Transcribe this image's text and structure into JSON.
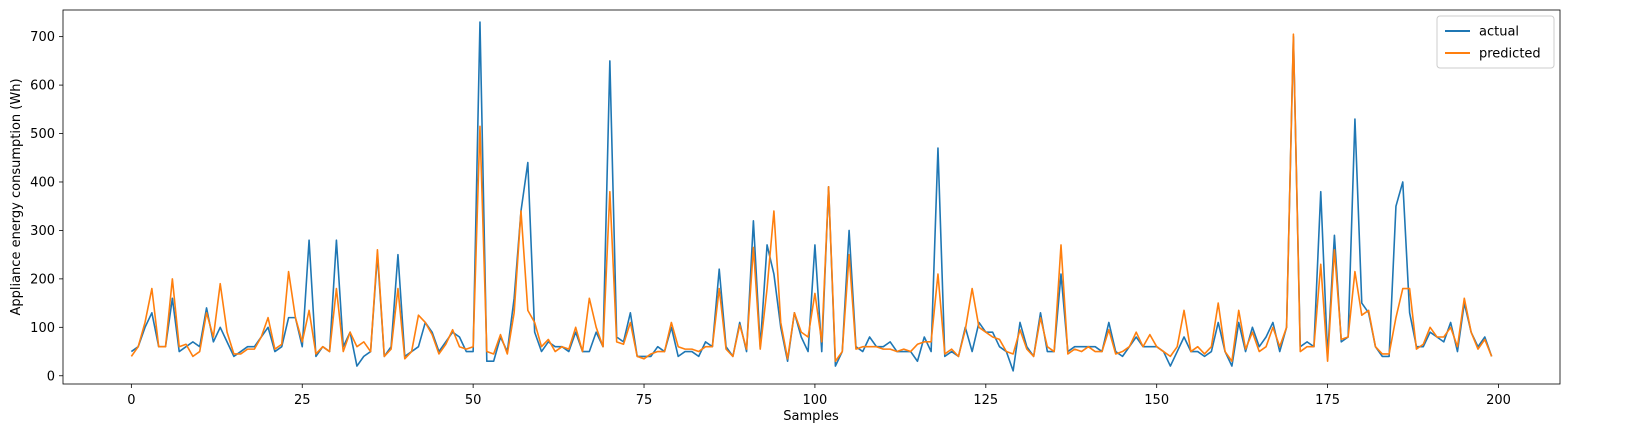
{
  "chart_data": {
    "type": "line",
    "xlabel": "Samples",
    "ylabel": "Appliance energy consumption (Wh)",
    "xlim": [
      -10,
      209
    ],
    "ylim": [
      -17,
      755
    ],
    "xticks": [
      0,
      25,
      50,
      75,
      100,
      125,
      150,
      175,
      200
    ],
    "yticks": [
      0,
      100,
      200,
      300,
      400,
      500,
      600,
      700
    ],
    "grid": false,
    "legend": "top-right",
    "series": [
      {
        "name": "actual",
        "color": "#1f77b4",
        "values": [
          50,
          60,
          100,
          130,
          60,
          60,
          160,
          50,
          60,
          70,
          60,
          140,
          70,
          100,
          70,
          40,
          50,
          60,
          60,
          80,
          100,
          50,
          60,
          120,
          120,
          60,
          280,
          40,
          60,
          50,
          280,
          60,
          90,
          20,
          40,
          50,
          250,
          40,
          60,
          250,
          40,
          50,
          60,
          110,
          90,
          50,
          70,
          90,
          80,
          50,
          50,
          730,
          30,
          30,
          80,
          50,
          160,
          340,
          440,
          90,
          50,
          70,
          60,
          60,
          50,
          90,
          50,
          50,
          90,
          60,
          650,
          80,
          70,
          130,
          40,
          40,
          40,
          60,
          50,
          100,
          40,
          50,
          50,
          40,
          70,
          60,
          220,
          60,
          40,
          110,
          50,
          320,
          60,
          270,
          210,
          100,
          30,
          130,
          80,
          50,
          270,
          50,
          390,
          20,
          50,
          300,
          60,
          50,
          80,
          60,
          60,
          70,
          50,
          50,
          50,
          30,
          80,
          50,
          470,
          40,
          50,
          40,
          100,
          50,
          110,
          90,
          90,
          60,
          50,
          10,
          110,
          60,
          40,
          130,
          50,
          50,
          210,
          50,
          60,
          60,
          60,
          60,
          50,
          110,
          50,
          40,
          60,
          80,
          60,
          60,
          60,
          50,
          20,
          50,
          80,
          50,
          50,
          40,
          50,
          110,
          50,
          20,
          110,
          50,
          100,
          60,
          80,
          110,
          50,
          100,
          700,
          60,
          70,
          60,
          380,
          40,
          290,
          70,
          80,
          530,
          150,
          130,
          60,
          40,
          40,
          350,
          400,
          130,
          60,
          60,
          90,
          80,
          70,
          110,
          50,
          150,
          90,
          60,
          80,
          40
        ]
      },
      {
        "name": "predicted",
        "color": "#ff7f0e",
        "values": [
          40,
          60,
          110,
          180,
          60,
          60,
          200,
          60,
          65,
          40,
          50,
          130,
          80,
          190,
          90,
          45,
          45,
          55,
          55,
          80,
          120,
          55,
          65,
          215,
          120,
          70,
          135,
          45,
          60,
          50,
          180,
          50,
          90,
          60,
          70,
          50,
          260,
          40,
          55,
          180,
          35,
          50,
          125,
          110,
          85,
          45,
          65,
          95,
          60,
          55,
          60,
          515,
          50,
          45,
          85,
          45,
          130,
          340,
          135,
          110,
          60,
          75,
          50,
          60,
          55,
          100,
          50,
          160,
          100,
          60,
          380,
          70,
          65,
          110,
          40,
          35,
          45,
          50,
          50,
          110,
          60,
          55,
          55,
          50,
          60,
          60,
          180,
          55,
          40,
          105,
          55,
          265,
          55,
          180,
          340,
          110,
          35,
          130,
          90,
          80,
          170,
          70,
          390,
          30,
          50,
          250,
          55,
          60,
          60,
          60,
          55,
          55,
          50,
          55,
          50,
          65,
          70,
          70,
          210,
          45,
          55,
          40,
          95,
          180,
          100,
          90,
          80,
          75,
          50,
          45,
          95,
          55,
          40,
          120,
          60,
          50,
          270,
          45,
          55,
          50,
          60,
          50,
          50,
          95,
          45,
          50,
          60,
          90,
          60,
          85,
          60,
          50,
          40,
          60,
          135,
          50,
          60,
          45,
          60,
          150,
          50,
          30,
          135,
          55,
          90,
          50,
          60,
          100,
          60,
          100,
          705,
          50,
          60,
          60,
          230,
          30,
          260,
          75,
          80,
          215,
          125,
          135,
          60,
          45,
          45,
          120,
          180,
          180,
          55,
          65,
          100,
          80,
          80,
          100,
          60,
          160,
          90,
          55,
          75,
          40
        ]
      }
    ]
  }
}
